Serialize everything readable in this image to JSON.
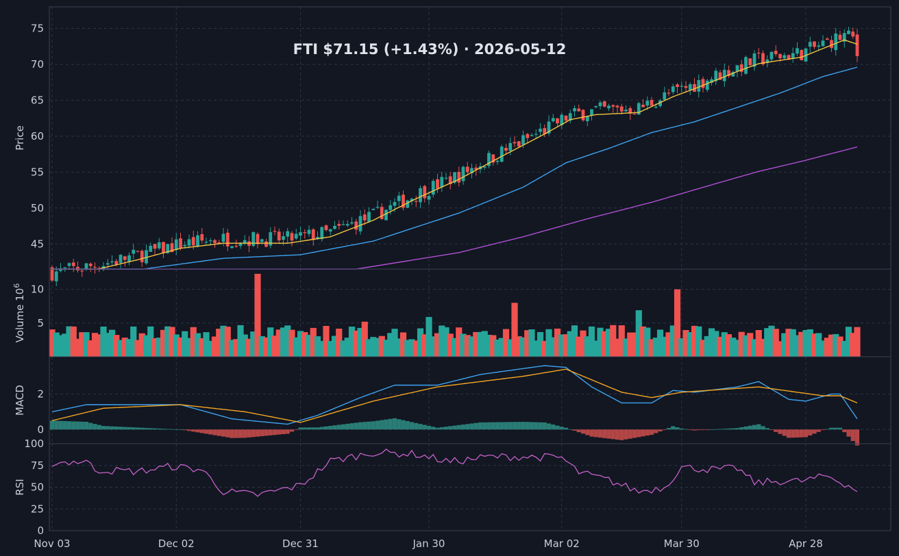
{
  "chart_data": {
    "type": "candlestick",
    "title": "FTI   $71.15   (+1.43%)   ·   2026-05-12",
    "x_tick_labels": [
      "Nov 03",
      "Dec 02",
      "Dec 31",
      "Jan 30",
      "Mar 02",
      "Mar 30",
      "Apr 28"
    ],
    "x_tick_days": [
      0,
      29,
      58,
      88,
      119,
      147,
      176
    ],
    "panels": {
      "price": {
        "ylabel": "Price",
        "ylim": [
          41.5,
          78
        ],
        "yticks": [
          45,
          50,
          55,
          60,
          65,
          70,
          75
        ],
        "ma_colors": [
          "#f5c542",
          "#3ea3f0",
          "#b04fd3"
        ],
        "ma_anchors": [
          [
            [
              0,
              40.4
            ],
            [
              10,
              41.4
            ],
            [
              20,
              42.8
            ],
            [
              30,
              44.4
            ],
            [
              40,
              45.1
            ],
            [
              55,
              45.1
            ],
            [
              65,
              46.0
            ],
            [
              75,
              48.3
            ],
            [
              85,
              51.3
            ],
            [
              95,
              54.0
            ],
            [
              105,
              57.2
            ],
            [
              115,
              60.3
            ],
            [
              121,
              62.3
            ],
            [
              127,
              63.0
            ],
            [
              137,
              63.3
            ],
            [
              145,
              65.5
            ],
            [
              150,
              66.6
            ],
            [
              160,
              69.0
            ],
            [
              165,
              70.1
            ],
            [
              175,
              71.0
            ],
            [
              185,
              73.4
            ],
            [
              188,
              72.8
            ]
          ],
          [
            [
              0,
              39.2
            ],
            [
              20,
              41.4
            ],
            [
              40,
              43.0
            ],
            [
              58,
              43.5
            ],
            [
              75,
              45.4
            ],
            [
              95,
              49.3
            ],
            [
              110,
              52.9
            ],
            [
              120,
              56.3
            ],
            [
              130,
              58.3
            ],
            [
              140,
              60.5
            ],
            [
              150,
              62.0
            ],
            [
              160,
              64.0
            ],
            [
              170,
              66.0
            ],
            [
              180,
              68.3
            ],
            [
              188,
              69.6
            ]
          ],
          [
            [
              0,
              36.6
            ],
            [
              58,
              40.7
            ],
            [
              70,
              41.4
            ],
            [
              95,
              43.8
            ],
            [
              110,
              46.0
            ],
            [
              125,
              48.5
            ],
            [
              140,
              50.8
            ],
            [
              155,
              53.4
            ],
            [
              165,
              55.1
            ],
            [
              175,
              56.5
            ],
            [
              188,
              58.5
            ]
          ]
        ]
      },
      "volume": {
        "ylabel": "Volume  10^6",
        "ylim": [
          0,
          13
        ],
        "yticks": [
          5,
          10
        ],
        "spikes": [
          [
            48,
            12.3
          ],
          [
            73,
            5.2
          ],
          [
            88,
            5.9
          ],
          [
            108,
            8.0
          ],
          [
            137,
            6.9
          ],
          [
            146,
            10.0
          ]
        ]
      },
      "macd": {
        "ylabel": "MACD",
        "ylim": [
          -0.8,
          4.1
        ],
        "yticks": [
          0,
          2
        ],
        "macd_color": "#3ea3f0",
        "signal_color": "#f5a623",
        "macd_anchors": [
          [
            0,
            1.0
          ],
          [
            8,
            1.4
          ],
          [
            30,
            1.4
          ],
          [
            42,
            0.6
          ],
          [
            55,
            0.3
          ],
          [
            62,
            0.8
          ],
          [
            72,
            1.8
          ],
          [
            80,
            2.5
          ],
          [
            90,
            2.5
          ],
          [
            100,
            3.1
          ],
          [
            115,
            3.6
          ],
          [
            120,
            3.5
          ],
          [
            126,
            2.4
          ],
          [
            133,
            1.5
          ],
          [
            140,
            1.5
          ],
          [
            145,
            2.2
          ],
          [
            150,
            2.1
          ],
          [
            160,
            2.4
          ],
          [
            165,
            2.7
          ],
          [
            172,
            1.7
          ],
          [
            176,
            1.6
          ],
          [
            182,
            2.0
          ],
          [
            184,
            2.0
          ],
          [
            188,
            0.6
          ]
        ],
        "signal_anchors": [
          [
            0,
            0.5
          ],
          [
            12,
            1.2
          ],
          [
            30,
            1.4
          ],
          [
            45,
            1.0
          ],
          [
            58,
            0.4
          ],
          [
            75,
            1.6
          ],
          [
            90,
            2.4
          ],
          [
            110,
            3.0
          ],
          [
            120,
            3.4
          ],
          [
            133,
            2.1
          ],
          [
            140,
            1.8
          ],
          [
            147,
            2.1
          ],
          [
            165,
            2.4
          ],
          [
            180,
            1.9
          ],
          [
            184,
            1.9
          ],
          [
            188,
            1.5
          ]
        ]
      },
      "rsi": {
        "ylabel": "RSI",
        "ylim": [
          0,
          100
        ],
        "yticks": [
          0,
          25,
          50,
          75,
          100
        ],
        "color": "#c661c7",
        "anchors": [
          [
            0,
            78
          ],
          [
            8,
            80
          ],
          [
            10,
            70
          ],
          [
            20,
            68
          ],
          [
            28,
            74
          ],
          [
            35,
            70
          ],
          [
            40,
            45
          ],
          [
            48,
            41
          ],
          [
            58,
            52
          ],
          [
            65,
            80
          ],
          [
            75,
            90
          ],
          [
            85,
            88
          ],
          [
            93,
            79
          ],
          [
            102,
            85
          ],
          [
            110,
            85
          ],
          [
            119,
            84
          ],
          [
            123,
            67
          ],
          [
            130,
            58
          ],
          [
            137,
            45
          ],
          [
            143,
            50
          ],
          [
            147,
            73
          ],
          [
            155,
            70
          ],
          [
            160,
            72
          ],
          [
            164,
            55
          ],
          [
            170,
            57
          ],
          [
            175,
            57
          ],
          [
            181,
            63
          ],
          [
            186,
            52
          ],
          [
            188,
            46
          ]
        ]
      }
    },
    "candle_colors": {
      "up": "#26a69a",
      "down": "#ef5350"
    }
  }
}
